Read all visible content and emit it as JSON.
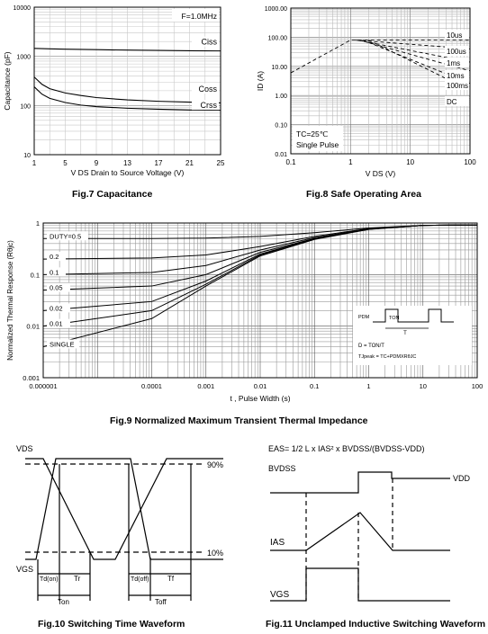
{
  "captions": {
    "fig7": "Fig.7 Capacitance",
    "fig8": "Fig.8 Safe Operating Area",
    "fig9": "Fig.9 Normalized Maximum Transient Thermal Impedance",
    "fig10": "Fig.10 Switching Time Waveform",
    "fig11": "Fig.11 Unclamped Inductive Switching Waveform"
  },
  "chart_data": [
    {
      "id": "fig7",
      "type": "line",
      "title": "Fig.7 Capacitance",
      "xlabel": "V DS Drain to Source Voltage (V)",
      "ylabel": "Capacitance (pF)",
      "x_ticks": [
        1,
        5,
        9,
        13,
        17,
        21,
        25
      ],
      "xlim": [
        1,
        25
      ],
      "y_scale": "log",
      "ylim": [
        10,
        10000
      ],
      "y_ticks": [
        "10",
        "100",
        "1000",
        "10000"
      ],
      "annotation": "F=1.0MHz",
      "series": [
        {
          "name": "Ciss",
          "x": [
            1,
            3,
            5,
            9,
            13,
            17,
            21,
            25
          ],
          "y": [
            1450,
            1420,
            1400,
            1370,
            1340,
            1320,
            1300,
            1290
          ]
        },
        {
          "name": "Coss",
          "x": [
            1,
            2,
            3,
            5,
            7,
            9,
            13,
            17,
            21,
            25
          ],
          "y": [
            380,
            270,
            220,
            180,
            160,
            145,
            130,
            122,
            117,
            113
          ]
        },
        {
          "name": "Crss",
          "x": [
            1,
            2,
            3,
            5,
            7,
            9,
            13,
            17,
            21,
            25
          ],
          "y": [
            240,
            170,
            140,
            115,
            102,
            95,
            88,
            84,
            81,
            80
          ]
        }
      ],
      "label_colors": {
        "lines": "#000000",
        "grid": "#bfbfbf"
      }
    },
    {
      "id": "fig8",
      "type": "line",
      "title": "Fig.8 Safe Operating Area",
      "xlabel": "V DS (V)",
      "ylabel": "ID (A)",
      "x_scale": "log",
      "y_scale": "log",
      "xlim": [
        0.1,
        100
      ],
      "ylim": [
        0.01,
        1000
      ],
      "x_ticks": [
        "0.1",
        "1",
        "10",
        "100"
      ],
      "y_ticks": [
        "0.01",
        "0.10",
        "1.00",
        "10.00",
        "100.00",
        "1000.00"
      ],
      "annotations": [
        "TC=25℃",
        "Single Pulse"
      ],
      "series": [
        {
          "name": "10us",
          "x": [
            0.1,
            1.0,
            1.6,
            100
          ],
          "y": [
            6,
            80,
            80,
            80
          ]
        },
        {
          "name": "100us",
          "x": [
            1.2,
            100
          ],
          "y": [
            80,
            40
          ]
        },
        {
          "name": "1ms",
          "x": [
            1.3,
            100
          ],
          "y": [
            80,
            14
          ]
        },
        {
          "name": "10ms",
          "x": [
            1.4,
            100
          ],
          "y": [
            80,
            7
          ]
        },
        {
          "name": "100ms",
          "x": [
            1.6,
            100
          ],
          "y": [
            80,
            2.6
          ]
        },
        {
          "name": "DC",
          "x": [
            2.0,
            100
          ],
          "y": [
            80,
            1.5
          ]
        }
      ]
    },
    {
      "id": "fig9",
      "type": "line",
      "title": "Fig.9 Normalized Maximum Transient Thermal Impedance",
      "xlabel": "t , Pulse Width (s)",
      "ylabel": "Normalized Thermal Response (Rθjc)",
      "x_scale": "log",
      "y_scale": "log",
      "xlim": [
        1e-06,
        100
      ],
      "ylim": [
        0.001,
        1
      ],
      "x_ticks": [
        "0.000001",
        "0.0001",
        "0.001",
        "0.01",
        "0.1",
        "1",
        "10",
        "100"
      ],
      "y_ticks": [
        "0.001",
        "0.01",
        "0.1",
        "1"
      ],
      "inset": {
        "labels": [
          "PDM",
          "TON",
          "T"
        ],
        "equations": [
          "D = TON/T",
          "TJpeak = TC+PDMXRθJC"
        ]
      },
      "series": [
        {
          "name": "DUTY=0.5",
          "x": [
            1e-06,
            0.0001,
            0.001,
            0.01,
            0.1,
            1,
            10,
            100
          ],
          "y": [
            0.5,
            0.5,
            0.51,
            0.55,
            0.65,
            0.8,
            0.9,
            0.92
          ]
        },
        {
          "name": "0.2",
          "x": [
            1e-06,
            0.0001,
            0.001,
            0.01,
            0.1,
            1,
            10,
            100
          ],
          "y": [
            0.2,
            0.21,
            0.24,
            0.35,
            0.55,
            0.78,
            0.9,
            0.92
          ]
        },
        {
          "name": "0.1",
          "x": [
            1e-06,
            0.0001,
            0.001,
            0.01,
            0.1,
            1,
            10,
            100
          ],
          "y": [
            0.1,
            0.11,
            0.15,
            0.3,
            0.52,
            0.77,
            0.9,
            0.92
          ]
        },
        {
          "name": "0.05",
          "x": [
            1e-06,
            0.0001,
            0.001,
            0.01,
            0.1,
            1,
            10,
            100
          ],
          "y": [
            0.05,
            0.06,
            0.1,
            0.27,
            0.5,
            0.76,
            0.9,
            0.92
          ]
        },
        {
          "name": "0.02",
          "x": [
            1e-06,
            0.0001,
            0.001,
            0.01,
            0.1,
            1,
            10,
            100
          ],
          "y": [
            0.02,
            0.03,
            0.075,
            0.25,
            0.49,
            0.76,
            0.9,
            0.92
          ]
        },
        {
          "name": "0.01",
          "x": [
            1e-06,
            0.0001,
            0.001,
            0.01,
            0.1,
            1,
            10,
            100
          ],
          "y": [
            0.01,
            0.02,
            0.065,
            0.24,
            0.49,
            0.76,
            0.9,
            0.92
          ]
        },
        {
          "name": "SINGLE",
          "x": [
            1e-06,
            0.0001,
            0.001,
            0.01,
            0.1,
            1,
            10,
            100
          ],
          "y": [
            0.004,
            0.014,
            0.06,
            0.23,
            0.48,
            0.75,
            0.9,
            0.92
          ]
        }
      ]
    }
  ],
  "fig10": {
    "labels": {
      "vds": "VDS",
      "vgs": "VGS",
      "p90": "90%",
      "p10": "10%",
      "tdon": "Td(on)",
      "tr": "Tr",
      "tdoff": "Td(off)",
      "tf": "Tf",
      "ton": "Ton",
      "toff": "Toff"
    }
  },
  "fig11": {
    "equation": "EAS= 1/2 L x IAS² x BVDSS/(BVDSS-VDD)",
    "labels": {
      "bvdss": "BVDSS",
      "vdd": "VDD",
      "ias": "IAS",
      "vgs": "VGS"
    }
  }
}
